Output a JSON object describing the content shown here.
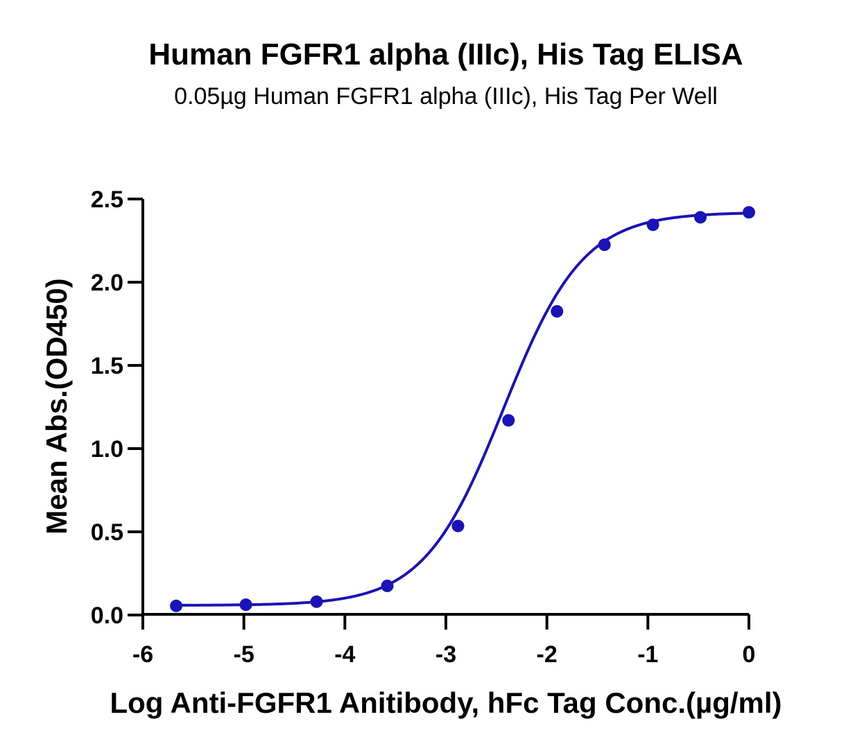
{
  "chart_data": {
    "type": "scatter",
    "title": "Human FGFR1 alpha (IIIc), His Tag ELISA",
    "subtitle": "0.05µg Human FGFR1 alpha (IIIc), His Tag Per Well",
    "xlabel": "Log Anti-FGFR1 Anitibody, hFc Tag Conc.(µg/ml)",
    "ylabel": "Mean Abs.(OD450)",
    "xlim": [
      -6,
      0
    ],
    "ylim": [
      0,
      2.5
    ],
    "x_ticks": [
      -6,
      -5,
      -4,
      -3,
      -2,
      -1,
      0
    ],
    "x_tick_labels": [
      "-6",
      "-5",
      "-4",
      "-3",
      "-2",
      "-1",
      "0"
    ],
    "y_ticks": [
      0,
      0.5,
      1,
      1.5,
      2,
      2.5
    ],
    "y_tick_labels": [
      "0.0",
      "0.5",
      "1.0",
      "1.5",
      "2.0",
      "2.5"
    ],
    "grid": false,
    "legend": "none",
    "color": "#1a14b8",
    "series": [
      {
        "x": [
          -5.67,
          -4.98,
          -4.28,
          -3.58,
          -2.88,
          -2.38,
          -1.9,
          -1.43,
          -0.95,
          -0.48,
          0.0
        ],
        "y": [
          0.055,
          0.062,
          0.08,
          0.175,
          0.535,
          1.17,
          1.825,
          2.225,
          2.345,
          2.39,
          2.42
        ]
      }
    ],
    "fit_curve": {
      "model": "4PL",
      "bottom": 0.058,
      "top": 2.42,
      "log_ec50": -2.43,
      "hill_slope": 1.1
    }
  }
}
